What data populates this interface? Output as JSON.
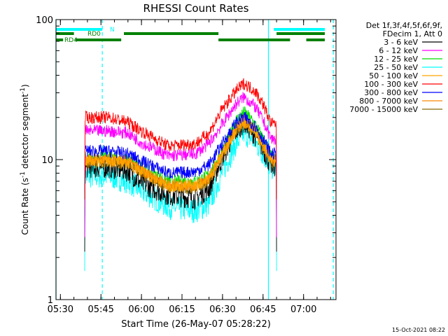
{
  "chart_data": {
    "type": "line",
    "title": "RHESSI Count Rates",
    "xlabel": "Start Time (26-May-07 05:28:22)",
    "ylabel": "Count Rate (s⁻¹ detector segment⁻¹)",
    "ylabel_main": "Count Rate (s",
    "ylabel_sup1": "-1",
    "ylabel_mid": " detector segment",
    "ylabel_sup2": "-1",
    "ylabel_end": ")",
    "y_scale": "log",
    "ylim": [
      1,
      100
    ],
    "xlim": [
      "05:28:22",
      "07:12:00"
    ],
    "x_ticks": [
      "05:30",
      "05:45",
      "06:00",
      "06:15",
      "06:30",
      "06:45",
      "07:00"
    ],
    "y_ticks": [
      "1",
      "10",
      "100"
    ],
    "legend_header": [
      "Det 1f,3f,4f,5f,6f,9f,",
      "FDecim 1, Att 0"
    ],
    "legend_position": "right",
    "timestamp": "15-Oct-2021 08:22",
    "series": [
      {
        "name": "3 - 6 keV",
        "color": "#000000",
        "x": [
          "05:48",
          "05:55",
          "06:00",
          "06:10",
          "06:20",
          "06:25",
          "06:30",
          "06:35",
          "06:38",
          "06:42",
          "06:45",
          "06:48"
        ],
        "values": [
          8.8,
          8.3,
          6.8,
          5.6,
          5.3,
          6.2,
          10.5,
          16,
          18.5,
          15,
          12,
          9
        ]
      },
      {
        "name": "6 - 12 keV",
        "color": "#ff00ff",
        "x": [
          "05:48",
          "05:55",
          "06:00",
          "06:10",
          "06:20",
          "06:25",
          "06:30",
          "06:35",
          "06:38",
          "06:42",
          "06:45",
          "06:48"
        ],
        "values": [
          16,
          15.5,
          13.2,
          10.6,
          11,
          13,
          18,
          25,
          28,
          24,
          19,
          14
        ]
      },
      {
        "name": "12 - 25 keV",
        "color": "#00dd00",
        "x": [
          "05:48",
          "05:55",
          "06:00",
          "06:10",
          "06:20",
          "06:25",
          "06:30",
          "06:35",
          "06:38",
          "06:42",
          "06:45",
          "06:48"
        ],
        "values": [
          10.3,
          10,
          8.8,
          7,
          7,
          7.8,
          11.5,
          19,
          22,
          18,
          14,
          10.5
        ]
      },
      {
        "name": "25 - 50 keV",
        "color": "#00ffff",
        "x": [
          "05:48",
          "05:55",
          "06:00",
          "06:10",
          "06:20",
          "06:25",
          "06:30",
          "06:35",
          "06:38",
          "06:42",
          "06:45",
          "06:48"
        ],
        "values": [
          7.6,
          7,
          6,
          4.6,
          4.3,
          4.8,
          8.2,
          13,
          15.5,
          13.5,
          11,
          8.8
        ]
      },
      {
        "name": "50 - 100 keV",
        "color": "#ffa500",
        "x": [
          "05:48",
          "05:55",
          "06:00",
          "06:10",
          "06:20",
          "06:25",
          "06:30",
          "06:35",
          "06:38",
          "06:42",
          "06:45",
          "06:48"
        ],
        "values": [
          9.8,
          9.6,
          8.2,
          6.5,
          6.5,
          7.3,
          11,
          16.5,
          18.5,
          16,
          12.5,
          9.8
        ]
      },
      {
        "name": "100 - 300 keV",
        "color": "#ff0000",
        "x": [
          "05:48",
          "05:55",
          "06:00",
          "06:10",
          "06:20",
          "06:25",
          "06:30",
          "06:35",
          "06:38",
          "06:42",
          "06:45",
          "06:48"
        ],
        "values": [
          20,
          18.5,
          16,
          12.5,
          13,
          15.5,
          23,
          31,
          35,
          31,
          25,
          18
        ]
      },
      {
        "name": "300 - 800 keV",
        "color": "#0000ff",
        "x": [
          "05:48",
          "05:55",
          "06:00",
          "06:10",
          "06:20",
          "06:25",
          "06:30",
          "06:35",
          "06:38",
          "06:42",
          "06:45",
          "06:48"
        ],
        "values": [
          11.5,
          11,
          9.8,
          8,
          8.2,
          9.2,
          13,
          18.5,
          20,
          17.5,
          14,
          11
        ]
      },
      {
        "name": "800 - 7000 keV",
        "color": "#ff8800",
        "x": [
          "05:48",
          "05:55",
          "06:00",
          "06:10",
          "06:20",
          "06:25",
          "06:30",
          "06:35",
          "06:38",
          "06:42",
          "06:45",
          "06:48"
        ],
        "values": [
          10,
          9.7,
          8.3,
          6.6,
          6.6,
          7.4,
          11,
          16.8,
          18.8,
          16.2,
          12.7,
          10
        ]
      },
      {
        "name": "7000 - 15000 keV",
        "color": "#886600",
        "x": [
          "05:48",
          "05:55",
          "06:00",
          "06:10",
          "06:20",
          "06:25",
          "06:30",
          "06:35",
          "06:38",
          "06:42",
          "06:45",
          "06:48"
        ],
        "values": [
          9.6,
          9.4,
          8,
          6.3,
          6.3,
          7.1,
          10.6,
          16.2,
          18.2,
          15.8,
          12.3,
          9.6
        ]
      }
    ],
    "flag_bars": [
      {
        "label": "N",
        "color": "#00ffff",
        "segments": [
          [
            "05:28:22",
            "05:45:30"
          ],
          [
            "06:49:00",
            "07:11:00"
          ]
        ]
      },
      {
        "label": "RD0",
        "color": "#008000",
        "segments": [
          [
            "05:28:22",
            "05:35:00"
          ],
          [
            "05:53:30",
            "06:28:30"
          ],
          [
            "06:50:00",
            "07:11:00"
          ]
        ]
      },
      {
        "label": "RD4",
        "color": "#008000",
        "segments": [
          [
            "05:28:22",
            "05:31:00"
          ],
          [
            "05:35:30",
            "05:52:30"
          ],
          [
            "06:28:30",
            "06:55:00"
          ],
          [
            "07:01:00",
            "07:11:00"
          ]
        ]
      }
    ],
    "vertical_markers": [
      {
        "time": "05:28:22",
        "style": "solid",
        "color": "#00ffff"
      },
      {
        "time": "05:45:30",
        "style": "dashed",
        "color": "#00ffff"
      },
      {
        "time": "06:47:00",
        "style": "solid",
        "color": "#00ffff"
      },
      {
        "time": "07:11:00",
        "style": "dashed",
        "color": "#00ffff"
      }
    ],
    "data_start": "05:39:00",
    "data_end": "06:50:00"
  }
}
